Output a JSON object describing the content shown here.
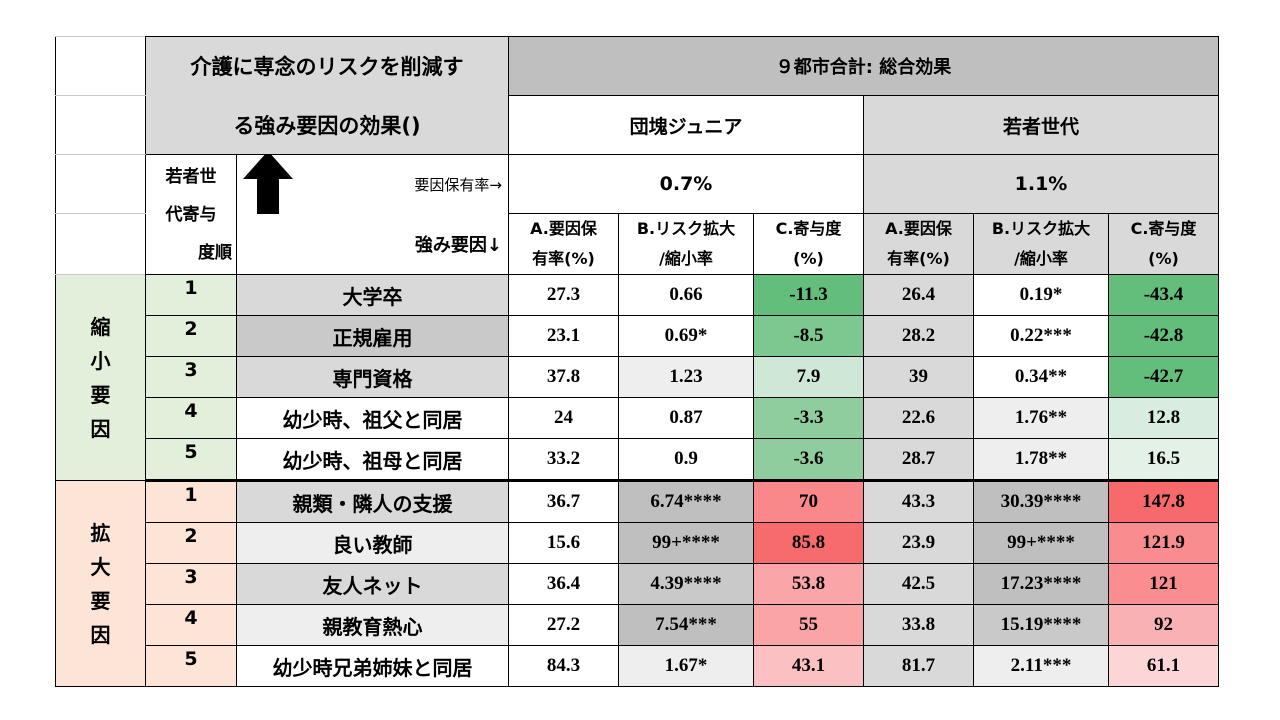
{
  "header": {
    "title_line1": "介護に専念のリスクを削減す",
    "title_line2": "る強み要因の効果()",
    "group_header": "９都市合計: 総合効果",
    "col_group_a": "団塊ジュニア",
    "col_group_b": "若者世代",
    "rank_label_1": "若者世",
    "rank_label_2": "代寄与",
    "rank_label_3": "度順",
    "holding_rate_label": "要因保有率→",
    "strength_factor_label": "強み要因↓",
    "holding_rate_a": "0.7%",
    "holding_rate_b": "1.1%",
    "col_a": [
      "A.要因保",
      "有率(%)"
    ],
    "col_b": [
      "B.リスク拡大",
      "/縮小率"
    ],
    "col_c": [
      "C.寄与度",
      "(%)"
    ]
  },
  "groups": [
    {
      "label": [
        "縮",
        "小",
        "要",
        "因"
      ],
      "color": "#e2efda"
    },
    {
      "label": [
        "拡",
        "大",
        "要",
        "因"
      ],
      "color": "#fce4d6"
    }
  ],
  "rows": [
    {
      "rank": "1",
      "factor": "大学卒",
      "a1": "27.3",
      "b1": "0.66",
      "c1": "-11.3",
      "a2": "26.4",
      "b2": "0.19*",
      "c2": "-43.4",
      "c1_color": "#63be7b",
      "c2_color": "#63be7b",
      "factor_bg": "#d9d9d9",
      "b1_bg": "#ffffff",
      "b2_bg": "#ffffff"
    },
    {
      "rank": "2",
      "factor": "正規雇用",
      "a1": "23.1",
      "b1": "0.69*",
      "c1": "-8.5",
      "a2": "28.2",
      "b2": "0.22***",
      "c2": "-42.8",
      "c1_color": "#7cc890",
      "c2_color": "#63be7b",
      "factor_bg": "#c9c9c9",
      "b1_bg": "#ffffff",
      "b2_bg": "#ffffff"
    },
    {
      "rank": "3",
      "factor": "専門資格",
      "a1": "37.8",
      "b1": "1.23",
      "c1": "7.9",
      "a2": "39",
      "b2": "0.34**",
      "c2": "-42.7",
      "c1_color": "#cfe8d6",
      "c2_color": "#63be7b",
      "factor_bg": "#d9d9d9",
      "b1_bg": "#eeeeee",
      "b2_bg": "#ffffff"
    },
    {
      "rank": "4",
      "factor": "幼少時、祖父と同居",
      "a1": "24",
      "b1": "0.87",
      "c1": "-3.3",
      "a2": "22.6",
      "b2": "1.76**",
      "c2": "12.8",
      "c1_color": "#8fcd9f",
      "c2_color": "#d8ecdf",
      "factor_bg": "#ffffff",
      "b1_bg": "#ffffff",
      "b2_bg": "#eeeeee"
    },
    {
      "rank": "5",
      "factor": "幼少時、祖母と同居",
      "a1": "33.2",
      "b1": "0.9",
      "c1": "-3.6",
      "a2": "28.7",
      "b2": "1.78**",
      "c2": "16.5",
      "c1_color": "#8fcd9f",
      "c2_color": "#e3f1e7",
      "factor_bg": "#ffffff",
      "b1_bg": "#ffffff",
      "b2_bg": "#eeeeee"
    },
    {
      "rank": "1",
      "factor": "親類・隣人の支援",
      "a1": "36.7",
      "b1": "6.74****",
      "c1": "70",
      "a2": "43.3",
      "b2": "30.39****",
      "c2": "147.8",
      "c1_color": "#f9888a",
      "c2_color": "#f8696b",
      "factor_bg": "#d9d9d9",
      "b1_bg": "#bfbfbf",
      "b2_bg": "#bfbfbf"
    },
    {
      "rank": "2",
      "factor": "良い教師",
      "a1": "15.6",
      "b1": "99+****",
      "c1": "85.8",
      "a2": "23.9",
      "b2": "99+****",
      "c2": "121.9",
      "c1_color": "#f86b6d",
      "c2_color": "#f98c8e",
      "factor_bg": "#eeeeee",
      "b1_bg": "#bfbfbf",
      "b2_bg": "#bfbfbf"
    },
    {
      "rank": "3",
      "factor": "友人ネット",
      "a1": "36.4",
      "b1": "4.39****",
      "c1": "53.8",
      "a2": "42.5",
      "b2": "17.23****",
      "c2": "121",
      "c1_color": "#faa6a8",
      "c2_color": "#f98d8f",
      "factor_bg": "#d9d9d9",
      "b1_bg": "#c9c9c9",
      "b2_bg": "#bfbfbf"
    },
    {
      "rank": "4",
      "factor": "親教育熱心",
      "a1": "27.2",
      "b1": "7.54***",
      "c1": "55",
      "a2": "33.8",
      "b2": "15.19****",
      "c2": "92",
      "c1_color": "#faa4a6",
      "c2_color": "#fab1b3",
      "factor_bg": "#eeeeee",
      "b1_bg": "#bfbfbf",
      "b2_bg": "#c9c9c9"
    },
    {
      "rank": "5",
      "factor": "幼少時兄弟姉妹と同居",
      "a1": "84.3",
      "b1": "1.67*",
      "c1": "43.1",
      "a2": "81.7",
      "b2": "2.11***",
      "c2": "61.1",
      "c1_color": "#fbc0c2",
      "c2_color": "#fcd5d7",
      "factor_bg": "#ffffff",
      "b1_bg": "#eeeeee",
      "b2_bg": "#eeeeee"
    }
  ]
}
